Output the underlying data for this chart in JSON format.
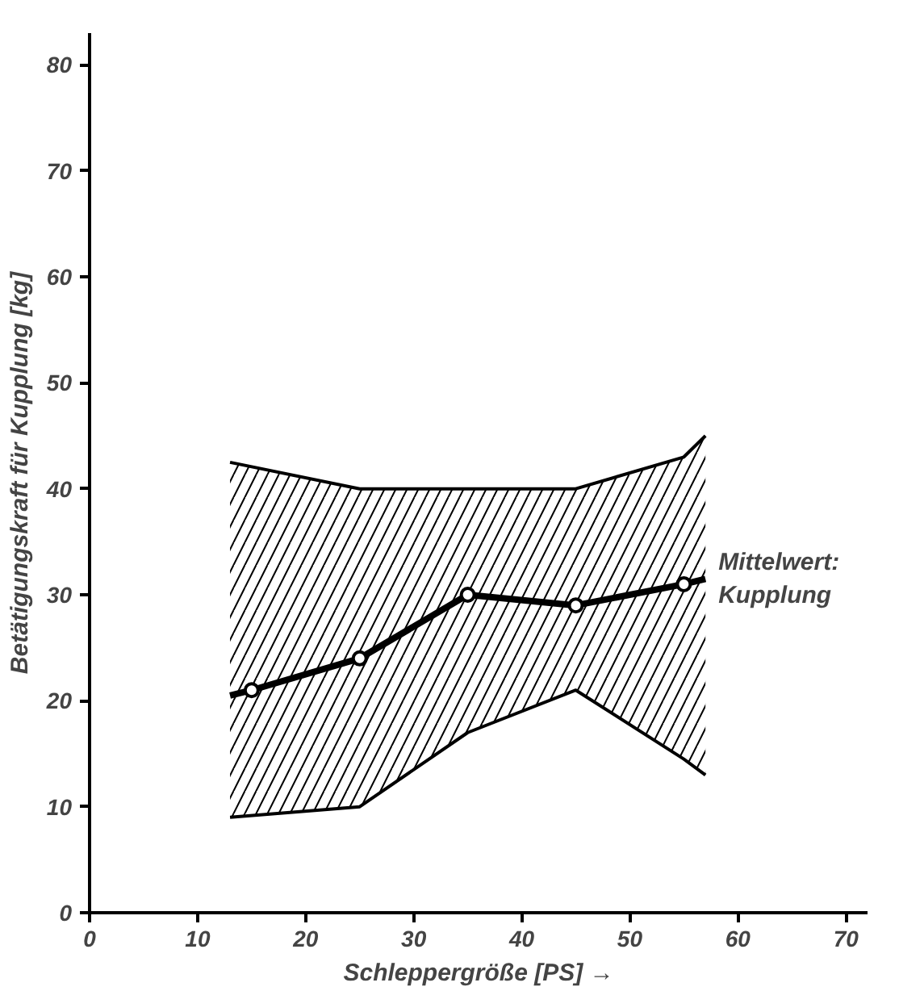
{
  "chart_data": {
    "type": "line",
    "xlabel": "Schleppergröße [PS] →",
    "ylabel": "Betätigungskraft für Kupplung [kg]",
    "xlim": [
      0,
      72
    ],
    "ylim": [
      0,
      83
    ],
    "xticks": [
      0,
      10,
      20,
      30,
      40,
      50,
      60,
      70
    ],
    "yticks": [
      0,
      10,
      20,
      30,
      40,
      50,
      60,
      70,
      80
    ],
    "grid": false,
    "series": [
      {
        "color": "#000000",
        "marker": "none",
        "x": [
          13,
          15,
          25,
          35,
          45,
          55,
          57
        ],
        "values": [
          20.5,
          21,
          24,
          30,
          29,
          31,
          31.5
        ],
        "lower": [
          9,
          9.2,
          10,
          17,
          21,
          14.5,
          13
        ],
        "upper": [
          42.5,
          42.1,
          40,
          40,
          40,
          43,
          45
        ]
      },
      {
        "type": "scatter",
        "color": "#000000",
        "marker": "circle",
        "x": [
          15,
          25,
          35,
          45,
          55
        ],
        "values": [
          21,
          24,
          30,
          29,
          31
        ]
      },
      {
        "color": "#000000",
        "marker": "none",
        "x": [
          13,
          25,
          35,
          45,
          55,
          57
        ],
        "values": [
          42.5,
          40,
          40,
          40,
          43,
          45
        ]
      },
      {
        "color": "#000000",
        "marker": "none",
        "x": [
          13,
          25,
          35,
          45,
          55,
          57
        ],
        "values": [
          9,
          10,
          17,
          21,
          14.5,
          13
        ]
      }
    ],
    "annotations": [
      "Mittelwert:\nKupplung"
    ]
  }
}
